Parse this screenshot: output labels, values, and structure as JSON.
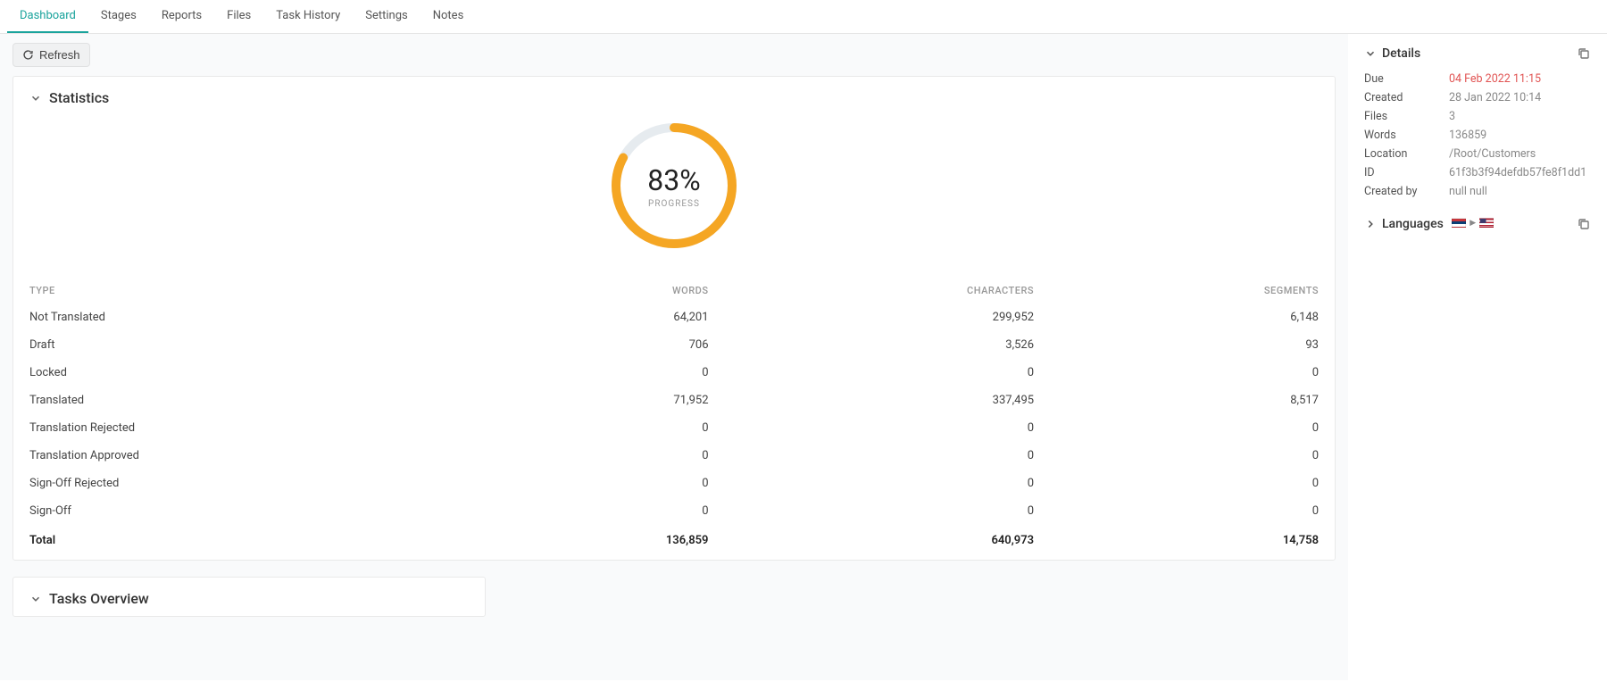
{
  "tabs": [
    {
      "label": "Dashboard",
      "active": true
    },
    {
      "label": "Stages"
    },
    {
      "label": "Reports"
    },
    {
      "label": "Files"
    },
    {
      "label": "Task History"
    },
    {
      "label": "Settings"
    },
    {
      "label": "Notes"
    }
  ],
  "refresh_label": "Refresh",
  "statistics": {
    "title": "Statistics",
    "progress": {
      "value": 83,
      "display": "83%",
      "label": "PROGRESS",
      "ring_color": "#f5a623",
      "track_color": "#e6ebef",
      "ring_radius": 65,
      "ring_stroke": 10
    },
    "columns": [
      "TYPE",
      "WORDS",
      "CHARACTERS",
      "SEGMENTS"
    ],
    "rows": [
      {
        "type": "Not Translated",
        "words": "64,201",
        "chars": "299,952",
        "segs": "6,148"
      },
      {
        "type": "Draft",
        "words": "706",
        "chars": "3,526",
        "segs": "93"
      },
      {
        "type": "Locked",
        "words": "0",
        "chars": "0",
        "segs": "0"
      },
      {
        "type": "Translated",
        "words": "71,952",
        "chars": "337,495",
        "segs": "8,517"
      },
      {
        "type": "Translation Rejected",
        "words": "0",
        "chars": "0",
        "segs": "0"
      },
      {
        "type": "Translation Approved",
        "words": "0",
        "chars": "0",
        "segs": "0"
      },
      {
        "type": "Sign-Off Rejected",
        "words": "0",
        "chars": "0",
        "segs": "0"
      },
      {
        "type": "Sign-Off",
        "words": "0",
        "chars": "0",
        "segs": "0"
      }
    ],
    "total": {
      "type": "Total",
      "words": "136,859",
      "chars": "640,973",
      "segs": "14,758"
    }
  },
  "tasks_overview": {
    "title": "Tasks Overview"
  },
  "details": {
    "title": "Details",
    "items": [
      {
        "k": "Due",
        "v": "04 Feb 2022 11:15",
        "due": true
      },
      {
        "k": "Created",
        "v": "28 Jan 2022 10:14"
      },
      {
        "k": "Files",
        "v": "3"
      },
      {
        "k": "Words",
        "v": "136859"
      },
      {
        "k": "Location",
        "v": "/Root/Customers"
      },
      {
        "k": "ID",
        "v": "61f3b3f94defdb57fe8f1dd1"
      },
      {
        "k": "Created by",
        "v": "null null"
      }
    ]
  },
  "languages": {
    "title": "Languages"
  }
}
